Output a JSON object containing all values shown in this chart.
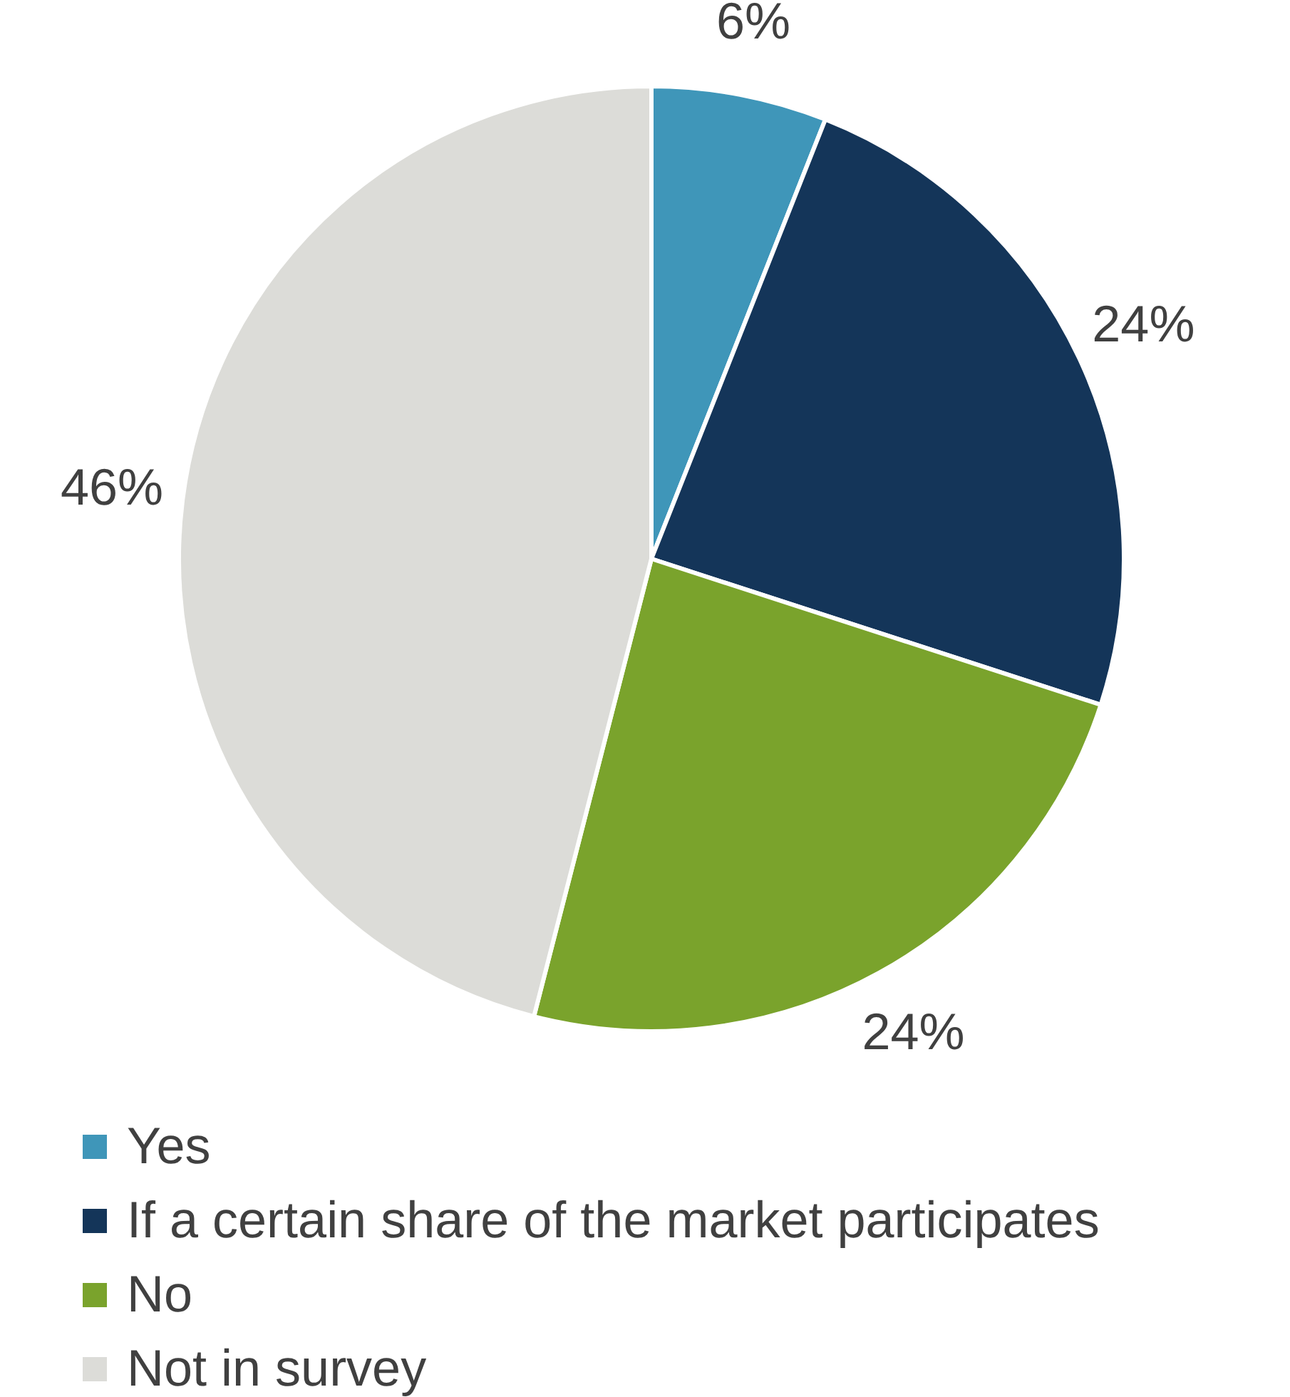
{
  "chart_data": {
    "type": "pie",
    "categories": [
      "Yes",
      "If a certain share of the market participates",
      "No",
      "Not in survey"
    ],
    "values": [
      6,
      24,
      24,
      46
    ],
    "colors": [
      "#3f96b9",
      "#143559",
      "#7aa32c",
      "#dcdcd8"
    ],
    "value_labels": [
      "6%",
      "24%",
      "24%",
      "46%"
    ],
    "legend": "bottom"
  }
}
